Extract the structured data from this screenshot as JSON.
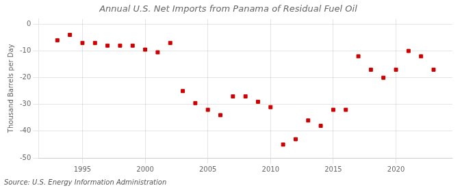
{
  "chart_data": {
    "type": "scatter",
    "title": "Annual U.S. Net Imports from Panama of Residual Fuel Oil",
    "ylabel": "Thousand Barrels per Day",
    "annotations": [
      "Source: U.S. Energy Information Administration"
    ],
    "x": [
      1993,
      1994,
      1995,
      1996,
      1997,
      1998,
      1999,
      2000,
      2001,
      2002,
      2003,
      2004,
      2005,
      2006,
      2007,
      2008,
      2009,
      2010,
      2011,
      2012,
      2013,
      2014,
      2015,
      2016,
      2017,
      2018,
      2019,
      2020,
      2021,
      2022,
      2023
    ],
    "values": [
      -6,
      -4,
      -7,
      -7,
      -8,
      -8,
      -8,
      -9.5,
      -10.5,
      -7,
      -25,
      -29.5,
      -32,
      -34,
      -27,
      -27,
      -29,
      -31,
      -45,
      -43,
      -36,
      -38,
      -32,
      -32,
      -12,
      -17,
      -20,
      -17,
      -10,
      -12,
      -17
    ],
    "color": "#cc0000",
    "marker": "square",
    "xlim": [
      1991.5,
      2024.5
    ],
    "xticks": [
      1995,
      2000,
      2005,
      2010,
      2015,
      2020
    ],
    "ylim": [
      -50,
      2
    ],
    "yticks": [
      0,
      -10,
      -20,
      -30,
      -40,
      -50
    ],
    "grid": true
  }
}
